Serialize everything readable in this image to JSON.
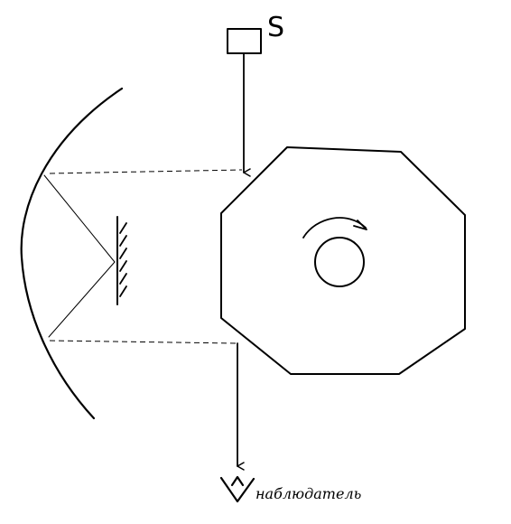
{
  "labels": {
    "source": "S",
    "observer": "наблюдатель"
  },
  "colors": {
    "ink": "#000000",
    "background": "#ffffff"
  }
}
